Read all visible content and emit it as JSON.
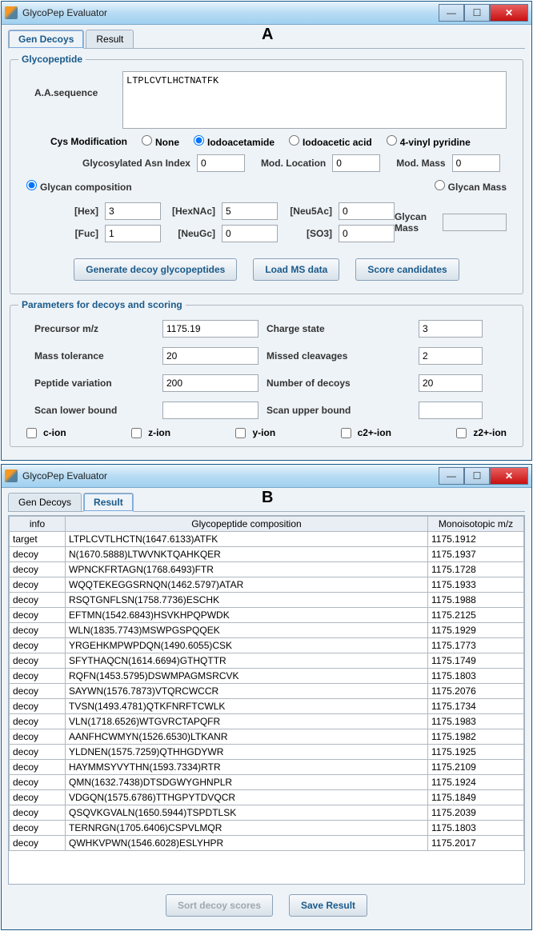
{
  "panelA": {
    "letter": "A",
    "title": "GlycoPep Evaluator",
    "tabs": {
      "gen": "Gen Decoys",
      "result": "Result"
    },
    "glycopeptide": {
      "legend": "Glycopeptide",
      "aaLabel": "A.A.sequence",
      "aaSequence": "LTPLCVTLHCTNATFK",
      "cysLabel": "Cys Modification",
      "cysOptions": {
        "none": "None",
        "iodoacetamide": "Iodoacetamide",
        "iodoacetic": "Iodoacetic acid",
        "vinyl": "4-vinyl pyridine"
      },
      "glyIdxLabel": "Glycosylated Asn Index",
      "glyIdx": "0",
      "modLocLabel": "Mod. Location",
      "modLoc": "0",
      "modMassLabel": "Mod. Mass",
      "modMass": "0",
      "glycanCompLabel": "Glycan composition",
      "glycanMassLabel": "Glycan Mass",
      "hex": {
        "label": "[Hex]",
        "val": "3"
      },
      "hexnac": {
        "label": "[HexNAc]",
        "val": "5"
      },
      "neu5ac": {
        "label": "[Neu5Ac]",
        "val": "0"
      },
      "fuc": {
        "label": "[Fuc]",
        "val": "1"
      },
      "neugc": {
        "label": "[NeuGc]",
        "val": "0"
      },
      "so3": {
        "label": "[SO3]",
        "val": "0"
      },
      "glycanMassFieldLabel": "Glycan Mass",
      "buttons": {
        "gen": "Generate decoy glycopeptides",
        "load": "Load MS data",
        "score": "Score candidates"
      }
    },
    "params": {
      "legend": "Parameters for decoys and scoring",
      "precursorLabel": "Precursor m/z",
      "precursor": "1175.19",
      "chargeLabel": "Charge state",
      "charge": "3",
      "massTolLabel": "Mass tolerance",
      "massTol": "20",
      "missedLabel": "Missed cleavages",
      "missed": "2",
      "pepVarLabel": "Peptide variation",
      "pepVar": "200",
      "nDecoysLabel": "Number of decoys",
      "nDecoys": "20",
      "scanLowerLabel": "Scan lower bound",
      "scanLower": "",
      "scanUpperLabel": "Scan upper bound",
      "scanUpper": "",
      "ions": {
        "c": "c-ion",
        "z": "z-ion",
        "y": "y-ion",
        "c2": "c2+-ion",
        "z2": "z2+-ion"
      }
    }
  },
  "panelB": {
    "letter": "B",
    "title": "GlycoPep Evaluator",
    "tabs": {
      "gen": "Gen Decoys",
      "result": "Result"
    },
    "columns": {
      "info": "info",
      "comp": "Glycopeptide composition",
      "mz": "Monoisotopic m/z"
    },
    "rows": [
      {
        "info": "target",
        "comp": "LTPLCVTLHCTN(1647.6133)ATFK",
        "mz": "1175.1912"
      },
      {
        "info": "decoy",
        "comp": "N(1670.5888)LTWVNKTQAHKQER",
        "mz": "1175.1937"
      },
      {
        "info": "decoy",
        "comp": "WPNCKFRTAGN(1768.6493)FTR",
        "mz": "1175.1728"
      },
      {
        "info": "decoy",
        "comp": "WQQTEKEGGSRNQN(1462.5797)ATAR",
        "mz": "1175.1933"
      },
      {
        "info": "decoy",
        "comp": "RSQTGNFLSN(1758.7736)ESCHK",
        "mz": "1175.1988"
      },
      {
        "info": "decoy",
        "comp": "EFTMN(1542.6843)HSVKHPQPWDK",
        "mz": "1175.2125"
      },
      {
        "info": "decoy",
        "comp": "WLN(1835.7743)MSWPGSPQQEK",
        "mz": "1175.1929"
      },
      {
        "info": "decoy",
        "comp": "YRGEHKMPWPDQN(1490.6055)CSK",
        "mz": "1175.1773"
      },
      {
        "info": "decoy",
        "comp": "SFYTHAQCN(1614.6694)GTHQTTR",
        "mz": "1175.1749"
      },
      {
        "info": "decoy",
        "comp": "RQFN(1453.5795)DSWMPAGMSRCVK",
        "mz": "1175.1803"
      },
      {
        "info": "decoy",
        "comp": "SAYWN(1576.7873)VTQRCWCCR",
        "mz": "1175.2076"
      },
      {
        "info": "decoy",
        "comp": "TVSN(1493.4781)QTKFNRFTCWLK",
        "mz": "1175.1734"
      },
      {
        "info": "decoy",
        "comp": "VLN(1718.6526)WTGVRCTAPQFR",
        "mz": "1175.1983"
      },
      {
        "info": "decoy",
        "comp": "AANFHCWMYN(1526.6530)LTKANR",
        "mz": "1175.1982"
      },
      {
        "info": "decoy",
        "comp": "YLDNEN(1575.7259)QTHHGDYWR",
        "mz": "1175.1925"
      },
      {
        "info": "decoy",
        "comp": "HAYMMSYVYTHN(1593.7334)RTR",
        "mz": "1175.2109"
      },
      {
        "info": "decoy",
        "comp": "QMN(1632.7438)DTSDGWYGHNPLR",
        "mz": "1175.1924"
      },
      {
        "info": "decoy",
        "comp": "VDGQN(1575.6786)TTHGPYTDVQCR",
        "mz": "1175.1849"
      },
      {
        "info": "decoy",
        "comp": "QSQVKGVALN(1650.5944)TSPDTLSK",
        "mz": "1175.2039"
      },
      {
        "info": "decoy",
        "comp": "TERNRGN(1705.6406)CSPVLMQR",
        "mz": "1175.1803"
      },
      {
        "info": "decoy",
        "comp": "QWHKVPWN(1546.6028)ESLYHPR",
        "mz": "1175.2017"
      }
    ],
    "buttons": {
      "sort": "Sort decoy scores",
      "save": "Save Result"
    }
  }
}
